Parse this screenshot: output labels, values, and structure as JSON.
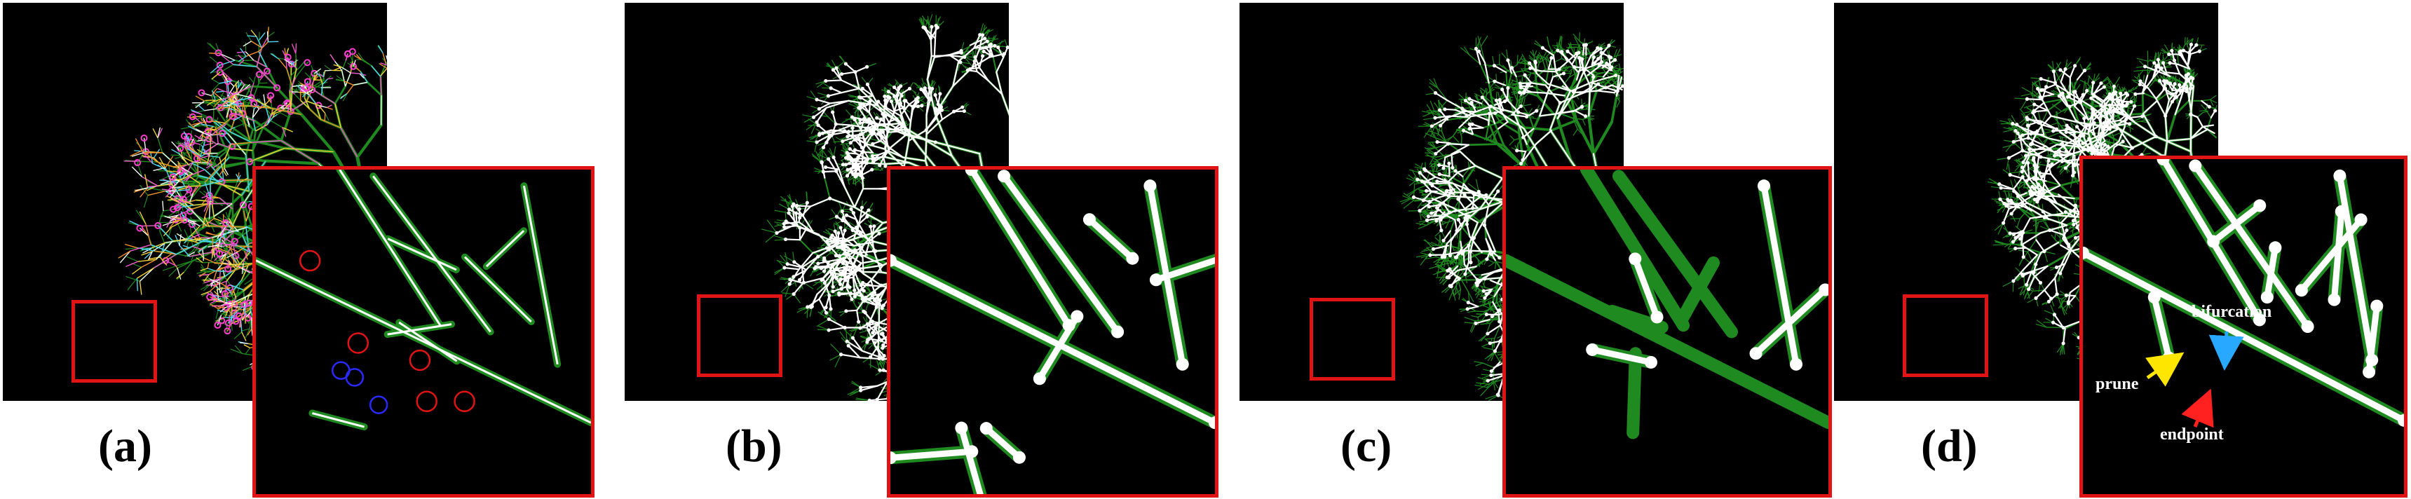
{
  "figure": {
    "panels": [
      {
        "id": "a",
        "caption": "(a)",
        "kind": "overlay-colored"
      },
      {
        "id": "b",
        "caption": "(b)",
        "kind": "white-skeleton"
      },
      {
        "id": "c",
        "caption": "(c)",
        "kind": "sparse-skeleton"
      },
      {
        "id": "d",
        "caption": "(d)",
        "kind": "pruned-skeleton"
      }
    ],
    "annotations": {
      "bifurcation": "bifurcation",
      "prune": "prune",
      "endpoint": "endpoint"
    },
    "colors": {
      "background": "#000000",
      "vessel_green": "#1f8a1f",
      "skeleton_white": "#ffffff",
      "highlight_red": "#e01414",
      "marker_blue": "#2a2aff",
      "arrow_yellow": "#ffe600",
      "arrow_cyan": "#29a8ff",
      "arrow_red": "#ff2020"
    }
  }
}
